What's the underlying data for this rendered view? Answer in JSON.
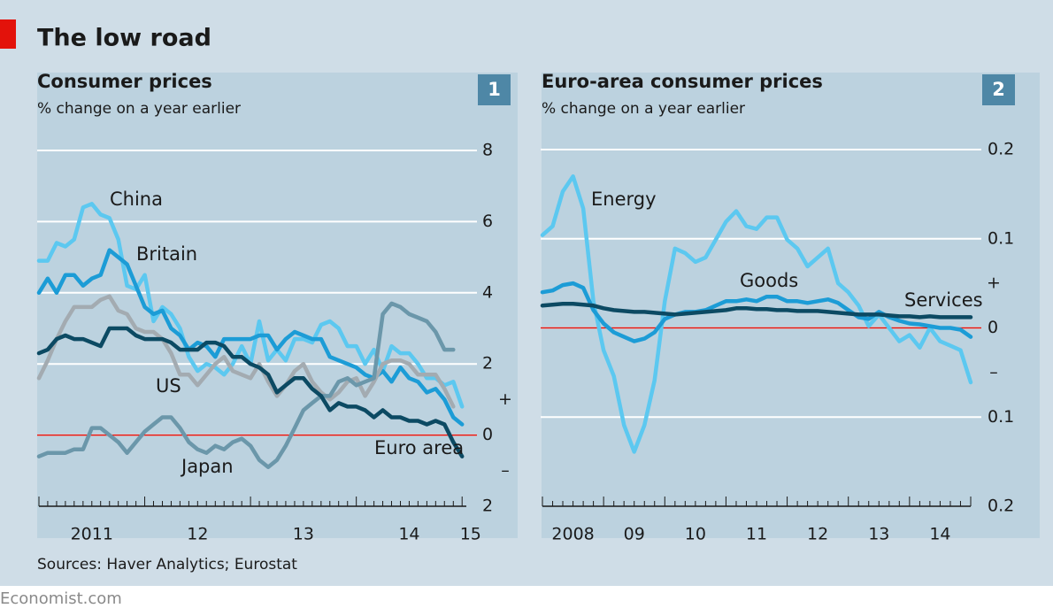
{
  "title": "The low road",
  "sources": "Sources: Haver Analytics; Eurostat",
  "footer": "Economist.com",
  "chart_data": [
    {
      "type": "line",
      "number": "1",
      "title": "Consumer prices",
      "subtitle": "% change on a year earlier",
      "x": [
        2011,
        2011.083,
        2011.167,
        2011.25,
        2011.333,
        2011.417,
        2011.5,
        2011.583,
        2011.667,
        2011.75,
        2011.833,
        2011.917,
        2012,
        2012.083,
        2012.167,
        2012.25,
        2012.333,
        2012.417,
        2012.5,
        2012.583,
        2012.667,
        2012.75,
        2012.833,
        2012.917,
        2013,
        2013.083,
        2013.167,
        2013.25,
        2013.333,
        2013.417,
        2013.5,
        2013.583,
        2013.667,
        2013.75,
        2013.833,
        2013.917,
        2014,
        2014.083,
        2014.167,
        2014.25,
        2014.333,
        2014.417,
        2014.5,
        2014.583,
        2014.667,
        2014.75,
        2014.833,
        2014.917,
        2015
      ],
      "xlim": [
        2011,
        2015.04
      ],
      "xticks": [
        {
          "value": 2011.5,
          "label": "2011"
        },
        {
          "value": 2012.5,
          "label": "12"
        },
        {
          "value": 2013.5,
          "label": "13"
        },
        {
          "value": 2014.5,
          "label": "14"
        },
        {
          "value": 2015.08,
          "label": "15"
        }
      ],
      "ylim": [
        -2,
        8
      ],
      "yticks": [
        8,
        6,
        4,
        2,
        0,
        {
          "value": -2,
          "label": "2"
        }
      ],
      "sign_labels": [
        "+",
        "–"
      ],
      "grid": true,
      "reference_line": {
        "value": 0,
        "color": "#e3120b"
      },
      "series": [
        {
          "name": "China",
          "color": "#5cc8f0",
          "values": [
            4.9,
            4.9,
            5.4,
            5.3,
            5.5,
            6.4,
            6.5,
            6.2,
            6.1,
            5.5,
            4.2,
            4.1,
            4.5,
            3.2,
            3.6,
            3.4,
            3.0,
            2.2,
            1.8,
            2.0,
            1.9,
            1.7,
            2.0,
            2.5,
            2.0,
            3.2,
            2.1,
            2.4,
            2.1,
            2.7,
            2.7,
            2.6,
            3.1,
            3.2,
            3.0,
            2.5,
            2.5,
            2.0,
            2.4,
            1.8,
            2.5,
            2.3,
            2.3,
            2.0,
            1.6,
            1.6,
            1.4,
            1.5,
            0.8
          ]
        },
        {
          "name": "Britain",
          "color": "#1c9cd6",
          "values": [
            4.0,
            4.4,
            4.0,
            4.5,
            4.5,
            4.2,
            4.4,
            4.5,
            5.2,
            5.0,
            4.8,
            4.2,
            3.6,
            3.4,
            3.5,
            3.0,
            2.8,
            2.4,
            2.6,
            2.5,
            2.2,
            2.7,
            2.7,
            2.7,
            2.7,
            2.8,
            2.8,
            2.4,
            2.7,
            2.9,
            2.8,
            2.7,
            2.7,
            2.2,
            2.1,
            2.0,
            1.9,
            1.7,
            1.6,
            1.8,
            1.5,
            1.9,
            1.6,
            1.5,
            1.2,
            1.3,
            1.0,
            0.5,
            0.3
          ]
        },
        {
          "name": "US",
          "color": "#a3abb1",
          "values": [
            1.6,
            2.1,
            2.7,
            3.2,
            3.6,
            3.6,
            3.6,
            3.8,
            3.9,
            3.5,
            3.4,
            3.0,
            2.9,
            2.9,
            2.7,
            2.3,
            1.7,
            1.7,
            1.4,
            1.7,
            2.0,
            2.2,
            1.8,
            1.7,
            1.6,
            2.0,
            1.5,
            1.1,
            1.4,
            1.8,
            2.0,
            1.5,
            1.2,
            1.0,
            1.2,
            1.5,
            1.6,
            1.1,
            1.5,
            2.0,
            2.1,
            2.1,
            2.0,
            1.7,
            1.7,
            1.7,
            1.3,
            0.8,
            null
          ]
        },
        {
          "name": "Japan",
          "color": "#6b97aa",
          "values": [
            -0.6,
            -0.5,
            -0.5,
            -0.5,
            -0.4,
            -0.4,
            0.2,
            0.2,
            0.0,
            -0.2,
            -0.5,
            -0.2,
            0.1,
            0.3,
            0.5,
            0.5,
            0.2,
            -0.2,
            -0.4,
            -0.5,
            -0.3,
            -0.4,
            -0.2,
            -0.1,
            -0.3,
            -0.7,
            -0.9,
            -0.7,
            -0.3,
            0.2,
            0.7,
            0.9,
            1.1,
            1.1,
            1.5,
            1.6,
            1.4,
            1.5,
            1.6,
            3.4,
            3.7,
            3.6,
            3.4,
            3.3,
            3.2,
            2.9,
            2.4,
            2.4,
            null
          ]
        },
        {
          "name": "Euro area",
          "color": "#0c4a63",
          "values": [
            2.3,
            2.4,
            2.7,
            2.8,
            2.7,
            2.7,
            2.6,
            2.5,
            3.0,
            3.0,
            3.0,
            2.8,
            2.7,
            2.7,
            2.7,
            2.6,
            2.4,
            2.4,
            2.4,
            2.6,
            2.6,
            2.5,
            2.2,
            2.2,
            2.0,
            1.9,
            1.7,
            1.2,
            1.4,
            1.6,
            1.6,
            1.3,
            1.1,
            0.7,
            0.9,
            0.8,
            0.8,
            0.7,
            0.5,
            0.7,
            0.5,
            0.5,
            0.4,
            0.4,
            0.3,
            0.4,
            0.3,
            -0.2,
            -0.6
          ]
        }
      ]
    },
    {
      "type": "line",
      "number": "2",
      "title": "Euro-area consumer prices",
      "subtitle": "% change on a year earlier",
      "x": [
        2008,
        2008.167,
        2008.333,
        2008.5,
        2008.667,
        2008.833,
        2009,
        2009.167,
        2009.333,
        2009.5,
        2009.667,
        2009.833,
        2010,
        2010.167,
        2010.333,
        2010.5,
        2010.667,
        2010.833,
        2011,
        2011.167,
        2011.333,
        2011.5,
        2011.667,
        2011.833,
        2012,
        2012.167,
        2012.333,
        2012.5,
        2012.667,
        2012.833,
        2013,
        2013.167,
        2013.333,
        2013.5,
        2013.667,
        2013.833,
        2014,
        2014.167,
        2014.333,
        2014.5,
        2014.667,
        2014.833,
        2015
      ],
      "xlim": [
        2008,
        2015
      ],
      "xticks": [
        {
          "value": 2008.5,
          "label": "2008"
        },
        {
          "value": 2009.5,
          "label": "09"
        },
        {
          "value": 2010.5,
          "label": "10"
        },
        {
          "value": 2011.5,
          "label": "11"
        },
        {
          "value": 2012.5,
          "label": "12"
        },
        {
          "value": 2013.5,
          "label": "13"
        },
        {
          "value": 2014.5,
          "label": "14"
        }
      ],
      "ylim": [
        -0.2,
        0.2
      ],
      "yticks": [
        0.2,
        0.1,
        0,
        {
          "value": -0.1,
          "label": "0.1"
        },
        {
          "value": -0.2,
          "label": "0.2"
        }
      ],
      "sign_labels": [
        "+",
        "–"
      ],
      "grid": true,
      "reference_line": {
        "value": 0,
        "color": "#e3120b"
      },
      "series": [
        {
          "name": "Energy",
          "color": "#5cc8f0",
          "values": [
            0.104,
            0.114,
            0.153,
            0.17,
            0.134,
            0.03,
            -0.025,
            -0.054,
            -0.109,
            -0.139,
            -0.109,
            -0.059,
            0.03,
            0.089,
            0.084,
            0.074,
            0.079,
            0.099,
            0.119,
            0.131,
            0.114,
            0.111,
            0.124,
            0.124,
            0.099,
            0.089,
            0.069,
            0.079,
            0.089,
            0.05,
            0.04,
            0.025,
            0.002,
            0.015,
            0.0,
            -0.015,
            -0.008,
            -0.022,
            0.0,
            -0.015,
            -0.02,
            -0.025,
            -0.061
          ]
        },
        {
          "name": "Goods",
          "color": "#1c9cd6",
          "values": [
            0.04,
            0.042,
            0.048,
            0.05,
            0.045,
            0.02,
            0.005,
            -0.005,
            -0.01,
            -0.015,
            -0.012,
            -0.005,
            0.01,
            0.015,
            0.018,
            0.018,
            0.02,
            0.025,
            0.03,
            0.03,
            0.032,
            0.03,
            0.035,
            0.035,
            0.03,
            0.03,
            0.028,
            0.03,
            0.032,
            0.028,
            0.02,
            0.012,
            0.01,
            0.018,
            0.012,
            0.008,
            0.005,
            0.004,
            0.002,
            0.0,
            0.0,
            -0.002,
            -0.01
          ]
        },
        {
          "name": "Services",
          "color": "#0c4a63",
          "values": [
            0.025,
            0.026,
            0.027,
            0.027,
            0.026,
            0.025,
            0.022,
            0.02,
            0.019,
            0.018,
            0.018,
            0.017,
            0.016,
            0.015,
            0.016,
            0.017,
            0.018,
            0.019,
            0.02,
            0.022,
            0.022,
            0.021,
            0.021,
            0.02,
            0.02,
            0.019,
            0.019,
            0.019,
            0.018,
            0.017,
            0.016,
            0.015,
            0.015,
            0.015,
            0.014,
            0.013,
            0.013,
            0.012,
            0.013,
            0.012,
            0.012,
            0.012,
            0.012
          ]
        }
      ]
    }
  ]
}
